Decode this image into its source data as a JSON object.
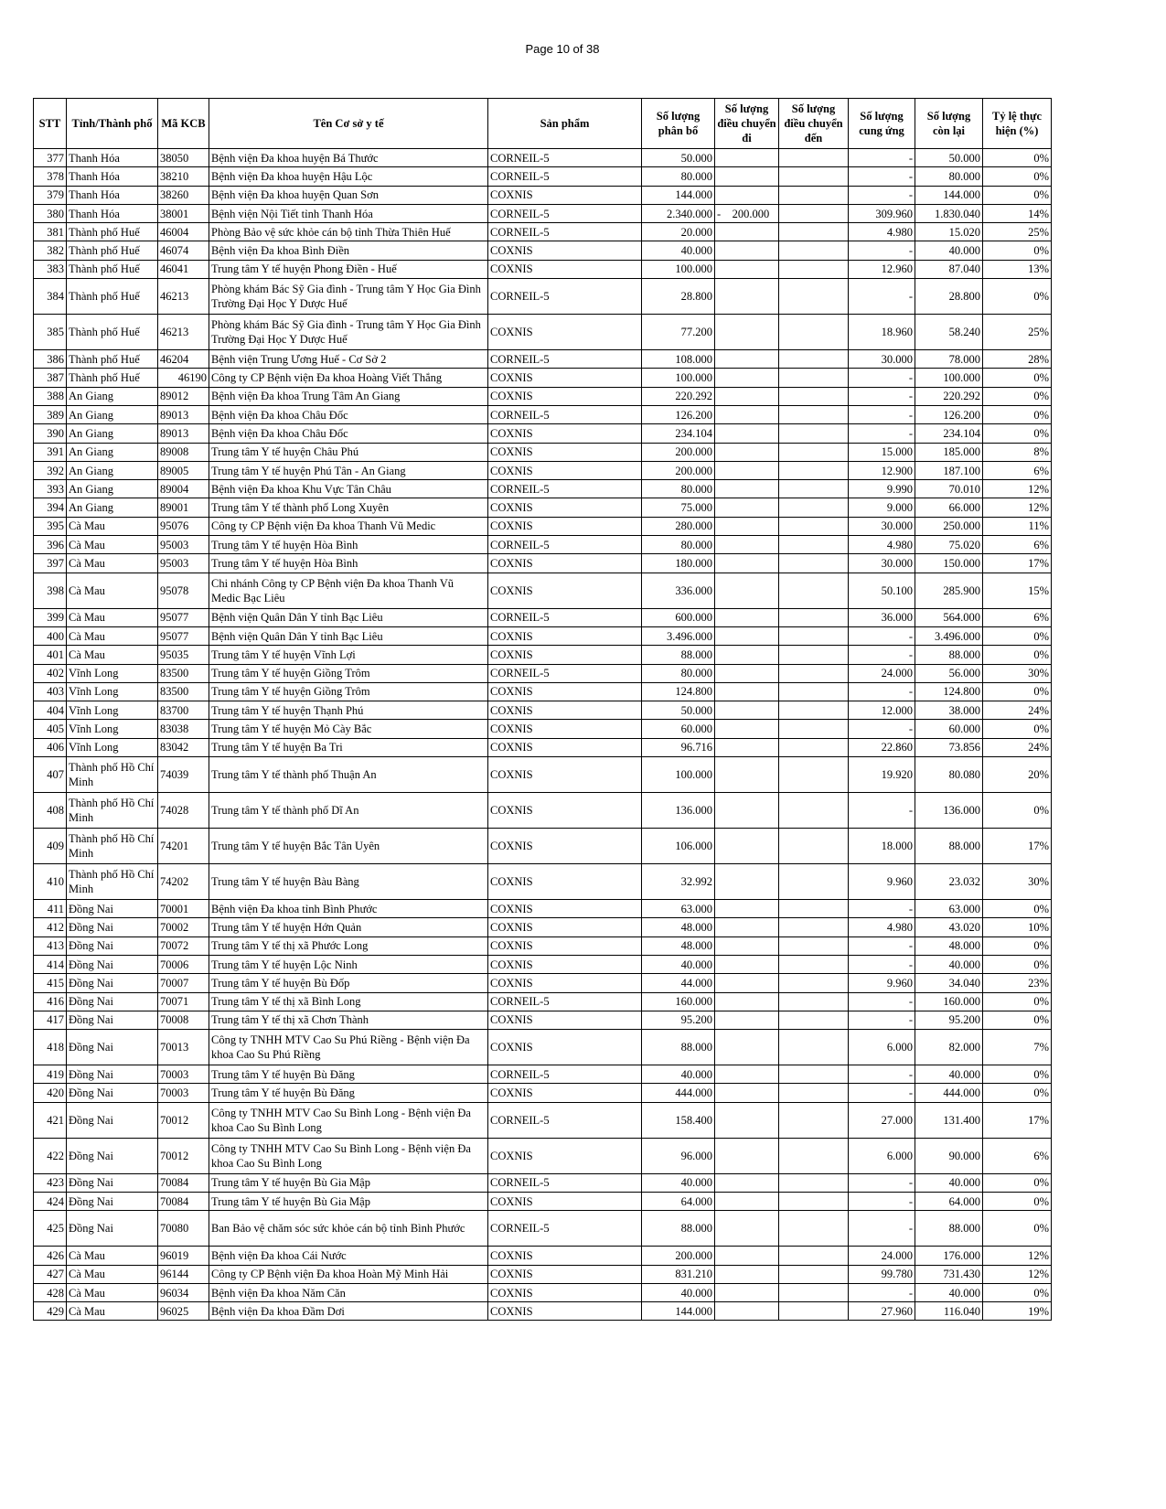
{
  "page_label": "Page 10 of 38",
  "headers": [
    "STT",
    "Tỉnh/Thành phố",
    "Mã KCB",
    "Tên Cơ sở y tế",
    "Sản phẩm",
    "Số lượng phân bổ",
    "Số lượng điều chuyển đi",
    "Số lượng điều chuyển đến",
    "Số lượng cung ứng",
    "Số lượng còn lại",
    "Tỷ lệ thực hiện (%)"
  ],
  "rows": [
    [
      "377",
      "Thanh Hóa",
      "38050",
      "Bệnh viện Đa khoa huyện Bá Thước",
      "CORNEIL-5",
      "50.000",
      "",
      "",
      "-",
      "50.000",
      "0%"
    ],
    [
      "378",
      "Thanh Hóa",
      "38210",
      "Bệnh viện Đa khoa huyện Hậu Lộc",
      "CORNEIL-5",
      "80.000",
      "",
      "",
      "-",
      "80.000",
      "0%"
    ],
    [
      "379",
      "Thanh Hóa",
      "38260",
      "Bệnh viện Đa khoa huyện Quan Sơn",
      "COXNIS",
      "144.000",
      "",
      "",
      "-",
      "144.000",
      "0%"
    ],
    [
      "380",
      "Thanh Hóa",
      "38001",
      "Bệnh viện Nội Tiết tỉnh Thanh Hóa",
      "CORNEIL-5",
      "2.340.000",
      "-    200.000",
      "",
      "309.960",
      "1.830.040",
      "14%"
    ],
    [
      "381",
      "Thành phố Huế",
      "46004",
      "Phòng Bảo vệ sức khỏe cán bộ tỉnh Thừa Thiên Huế",
      "CORNEIL-5",
      "20.000",
      "",
      "",
      "4.980",
      "15.020",
      "25%"
    ],
    [
      "382",
      "Thành phố Huế",
      "46074",
      "Bệnh viện Đa khoa Bình Điền",
      "COXNIS",
      "40.000",
      "",
      "",
      "-",
      "40.000",
      "0%"
    ],
    [
      "383",
      "Thành phố Huế",
      "46041",
      "Trung tâm Y tế huyện Phong Điền - Huế",
      "COXNIS",
      "100.000",
      "",
      "",
      "12.960",
      "87.040",
      "13%"
    ],
    [
      "384",
      "Thành phố Huế",
      "46213",
      "Phòng khám Bác Sỹ Gia đình - Trung tâm Y Học Gia Đình Trường Đại Học Y Dược Huế",
      "CORNEIL-5",
      "28.800",
      "",
      "",
      "-",
      "28.800",
      "0%"
    ],
    [
      "385",
      "Thành phố Huế",
      "46213",
      "Phòng khám Bác Sỹ Gia đình - Trung tâm Y Học Gia Đình Trường Đại Học Y Dược Huế",
      "COXNIS",
      "77.200",
      "",
      "",
      "18.960",
      "58.240",
      "25%"
    ],
    [
      "386",
      "Thành phố Huế",
      "46204",
      "Bệnh viện Trung Ương Huế - Cơ Sở 2",
      "CORNEIL-5",
      "108.000",
      "",
      "",
      "30.000",
      "78.000",
      "28%"
    ],
    [
      "387",
      "Thành phố Huế",
      "46190",
      "Công ty CP Bệnh viện Đa khoa Hoàng Viết Thắng",
      "COXNIS",
      "100.000",
      "",
      "",
      "-",
      "100.000",
      "0%"
    ],
    [
      "388",
      "An Giang",
      "89012",
      "Bệnh viện Đa khoa Trung Tâm An Giang",
      "COXNIS",
      "220.292",
      "",
      "",
      "-",
      "220.292",
      "0%"
    ],
    [
      "389",
      "An Giang",
      "89013",
      "Bệnh viện Đa khoa Châu Đốc",
      "CORNEIL-5",
      "126.200",
      "",
      "",
      "-",
      "126.200",
      "0%"
    ],
    [
      "390",
      "An Giang",
      "89013",
      "Bệnh viện Đa khoa Châu Đốc",
      "COXNIS",
      "234.104",
      "",
      "",
      "-",
      "234.104",
      "0%"
    ],
    [
      "391",
      "An Giang",
      "89008",
      "Trung tâm Y tế huyện Châu Phú",
      "COXNIS",
      "200.000",
      "",
      "",
      "15.000",
      "185.000",
      "8%"
    ],
    [
      "392",
      "An Giang",
      "89005",
      "Trung tâm Y tế huyện Phú Tân - An Giang",
      "COXNIS",
      "200.000",
      "",
      "",
      "12.900",
      "187.100",
      "6%"
    ],
    [
      "393",
      "An Giang",
      "89004",
      "Bệnh viện Đa khoa Khu Vực Tân Châu",
      "CORNEIL-5",
      "80.000",
      "",
      "",
      "9.990",
      "70.010",
      "12%"
    ],
    [
      "394",
      "An Giang",
      "89001",
      "Trung tâm Y tế thành phố Long Xuyên",
      "COXNIS",
      "75.000",
      "",
      "",
      "9.000",
      "66.000",
      "12%"
    ],
    [
      "395",
      "Cà Mau",
      "95076",
      "Công ty CP Bệnh viện Đa khoa Thanh Vũ Medic",
      "COXNIS",
      "280.000",
      "",
      "",
      "30.000",
      "250.000",
      "11%"
    ],
    [
      "396",
      "Cà Mau",
      "95003",
      "Trung tâm Y tế huyện Hòa Bình",
      "CORNEIL-5",
      "80.000",
      "",
      "",
      "4.980",
      "75.020",
      "6%"
    ],
    [
      "397",
      "Cà Mau",
      "95003",
      "Trung tâm Y tế huyện Hòa Bình",
      "COXNIS",
      "180.000",
      "",
      "",
      "30.000",
      "150.000",
      "17%"
    ],
    [
      "398",
      "Cà Mau",
      "95078",
      "Chi nhánh Công ty CP Bệnh viện Đa khoa Thanh Vũ Medic Bạc Liêu",
      "COXNIS",
      "336.000",
      "",
      "",
      "50.100",
      "285.900",
      "15%"
    ],
    [
      "399",
      "Cà Mau",
      "95077",
      "Bệnh viện Quân Dân Y tỉnh Bạc Liêu",
      "CORNEIL-5",
      "600.000",
      "",
      "",
      "36.000",
      "564.000",
      "6%"
    ],
    [
      "400",
      "Cà Mau",
      "95077",
      "Bệnh viện Quân Dân Y tỉnh Bạc Liêu",
      "COXNIS",
      "3.496.000",
      "",
      "",
      "-",
      "3.496.000",
      "0%"
    ],
    [
      "401",
      "Cà Mau",
      "95035",
      "Trung tâm Y tế huyện Vĩnh Lợi",
      "COXNIS",
      "88.000",
      "",
      "",
      "-",
      "88.000",
      "0%"
    ],
    [
      "402",
      "Vĩnh Long",
      "83500",
      "Trung tâm Y tế huyện Giồng Trôm",
      "CORNEIL-5",
      "80.000",
      "",
      "",
      "24.000",
      "56.000",
      "30%"
    ],
    [
      "403",
      "Vĩnh Long",
      "83500",
      "Trung tâm Y tế huyện Giồng Trôm",
      "COXNIS",
      "124.800",
      "",
      "",
      "-",
      "124.800",
      "0%"
    ],
    [
      "404",
      "Vĩnh Long",
      "83700",
      "Trung tâm Y tế huyện Thạnh Phú",
      "COXNIS",
      "50.000",
      "",
      "",
      "12.000",
      "38.000",
      "24%"
    ],
    [
      "405",
      "Vĩnh Long",
      "83038",
      "Trung tâm Y tế huyện Mỏ Cày Bắc",
      "COXNIS",
      "60.000",
      "",
      "",
      "-",
      "60.000",
      "0%"
    ],
    [
      "406",
      "Vĩnh Long",
      "83042",
      "Trung tâm Y tế huyện Ba Tri",
      "COXNIS",
      "96.716",
      "",
      "",
      "22.860",
      "73.856",
      "24%"
    ],
    [
      "407",
      "Thành phố Hồ Chí Minh",
      "74039",
      "Trung tâm Y tế thành phố Thuận An",
      "COXNIS",
      "100.000",
      "",
      "",
      "19.920",
      "80.080",
      "20%"
    ],
    [
      "408",
      "Thành phố Hồ Chí Minh",
      "74028",
      "Trung tâm Y tế thành phố Dĩ An",
      "COXNIS",
      "136.000",
      "",
      "",
      "-",
      "136.000",
      "0%"
    ],
    [
      "409",
      "Thành phố Hồ Chí Minh",
      "74201",
      "Trung tâm Y tế huyện Bắc Tân Uyên",
      "COXNIS",
      "106.000",
      "",
      "",
      "18.000",
      "88.000",
      "17%"
    ],
    [
      "410",
      "Thành phố Hồ Chí Minh",
      "74202",
      "Trung tâm Y tế huyện Bàu Bàng",
      "COXNIS",
      "32.992",
      "",
      "",
      "9.960",
      "23.032",
      "30%"
    ],
    [
      "411",
      "Đồng Nai",
      "70001",
      "Bệnh viện Đa khoa tỉnh Bình Phước",
      "COXNIS",
      "63.000",
      "",
      "",
      "-",
      "63.000",
      "0%"
    ],
    [
      "412",
      "Đồng Nai",
      "70002",
      "Trung tâm Y tế huyện Hớn Quản",
      "COXNIS",
      "48.000",
      "",
      "",
      "4.980",
      "43.020",
      "10%"
    ],
    [
      "413",
      "Đồng Nai",
      "70072",
      "Trung tâm Y tế thị xã Phước Long",
      "COXNIS",
      "48.000",
      "",
      "",
      "-",
      "48.000",
      "0%"
    ],
    [
      "414",
      "Đồng Nai",
      "70006",
      "Trung tâm Y tế huyện Lộc Ninh",
      "COXNIS",
      "40.000",
      "",
      "",
      "-",
      "40.000",
      "0%"
    ],
    [
      "415",
      "Đồng Nai",
      "70007",
      "Trung tâm Y tế huyện Bù Đốp",
      "COXNIS",
      "44.000",
      "",
      "",
      "9.960",
      "34.040",
      "23%"
    ],
    [
      "416",
      "Đồng Nai",
      "70071",
      "Trung tâm Y tế thị xã Bình Long",
      "CORNEIL-5",
      "160.000",
      "",
      "",
      "-",
      "160.000",
      "0%"
    ],
    [
      "417",
      "Đồng Nai",
      "70008",
      "Trung tâm Y tế thị xã Chơn Thành",
      "COXNIS",
      "95.200",
      "",
      "",
      "-",
      "95.200",
      "0%"
    ],
    [
      "418",
      "Đồng Nai",
      "70013",
      "Công ty TNHH MTV Cao Su Phú Riềng - Bệnh viện Đa khoa Cao Su Phú Riềng",
      "COXNIS",
      "88.000",
      "",
      "",
      "6.000",
      "82.000",
      "7%"
    ],
    [
      "419",
      "Đồng Nai",
      "70003",
      "Trung tâm Y tế huyện Bù Đăng",
      "CORNEIL-5",
      "40.000",
      "",
      "",
      "-",
      "40.000",
      "0%"
    ],
    [
      "420",
      "Đồng Nai",
      "70003",
      "Trung tâm Y tế huyện Bù Đăng",
      "COXNIS",
      "444.000",
      "",
      "",
      "-",
      "444.000",
      "0%"
    ],
    [
      "421",
      "Đồng Nai",
      "70012",
      "Công ty TNHH MTV Cao Su Bình Long - Bệnh viện Đa khoa Cao Su Bình Long",
      "CORNEIL-5",
      "158.400",
      "",
      "",
      "27.000",
      "131.400",
      "17%"
    ],
    [
      "422",
      "Đồng Nai",
      "70012",
      "Công ty TNHH MTV Cao Su Bình Long - Bệnh viện Đa khoa Cao Su Bình Long",
      "COXNIS",
      "96.000",
      "",
      "",
      "6.000",
      "90.000",
      "6%"
    ],
    [
      "423",
      "Đồng Nai",
      "70084",
      "Trung tâm Y tế huyện Bù Gia Mập",
      "CORNEIL-5",
      "40.000",
      "",
      "",
      "-",
      "40.000",
      "0%"
    ],
    [
      "424",
      "Đồng Nai",
      "70084",
      "Trung tâm Y tế huyện Bù Gia Mập",
      "COXNIS",
      "64.000",
      "",
      "",
      "-",
      "64.000",
      "0%"
    ],
    [
      "425",
      "Đồng Nai",
      "70080",
      "Ban Bảo vệ chăm sóc sức khỏe cán bộ tỉnh Bình Phước",
      "CORNEIL-5",
      "88.000",
      "",
      "",
      "-",
      "88.000",
      "0%"
    ],
    [
      "426",
      "Cà Mau",
      "96019",
      "Bệnh viện Đa khoa Cái Nước",
      "COXNIS",
      "200.000",
      "",
      "",
      "24.000",
      "176.000",
      "12%"
    ],
    [
      "427",
      "Cà Mau",
      "96144",
      "Công ty CP Bệnh viện Đa khoa Hoàn Mỹ Minh Hải",
      "COXNIS",
      "831.210",
      "",
      "",
      "99.780",
      "731.430",
      "12%"
    ],
    [
      "428",
      "Cà Mau",
      "96034",
      "Bệnh viện Đa khoa Năm Căn",
      "COXNIS",
      "40.000",
      "",
      "",
      "-",
      "40.000",
      "0%"
    ],
    [
      "429",
      "Cà Mau",
      "96025",
      "Bệnh viện Đa khoa Đầm Dơi",
      "COXNIS",
      "144.000",
      "",
      "",
      "27.960",
      "116.040",
      "19%"
    ]
  ]
}
